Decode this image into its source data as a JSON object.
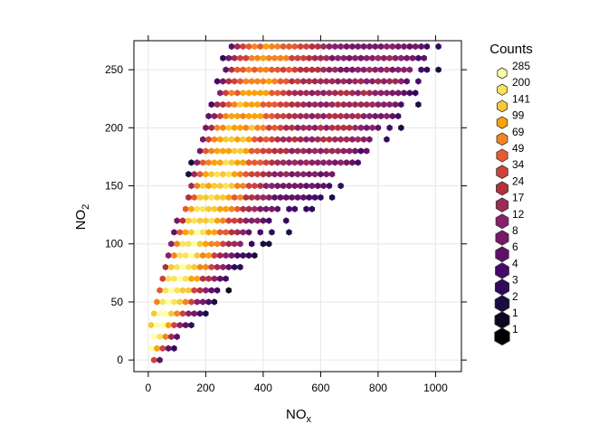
{
  "chart_data": {
    "type": "hexbin",
    "xlabel": "NO",
    "xlabel_sub": "x",
    "ylabel": "NO",
    "ylabel_sub": "2",
    "xlim": [
      -50,
      1090
    ],
    "ylim": [
      -10,
      275
    ],
    "x_ticks": [
      0,
      200,
      400,
      600,
      800,
      1000
    ],
    "y_ticks": [
      0,
      50,
      100,
      150,
      200,
      250
    ],
    "grid": true,
    "legend": {
      "title": "Counts",
      "placement": "right",
      "labels": [
        "285",
        "200",
        "141",
        "99",
        "69",
        "49",
        "34",
        "24",
        "17",
        "12",
        "8",
        "6",
        "4",
        "3",
        "2",
        "1",
        "1"
      ],
      "colors": [
        "#FCFFA4",
        "#F8E35A",
        "#F7C934",
        "#F9A20A",
        "#F3851E",
        "#E45A31",
        "#CE413D",
        "#B4303F",
        "#9E2A56",
        "#88206A",
        "#751867",
        "#5E1166",
        "#450A69",
        "#300A5B",
        "#1B0C41",
        "#0D071F",
        "#000004"
      ]
    },
    "counts_scale": {
      "breaks": [
        285,
        200,
        141,
        99,
        69,
        49,
        34,
        24,
        17,
        12,
        8,
        6,
        4,
        3,
        2,
        1
      ]
    }
  }
}
